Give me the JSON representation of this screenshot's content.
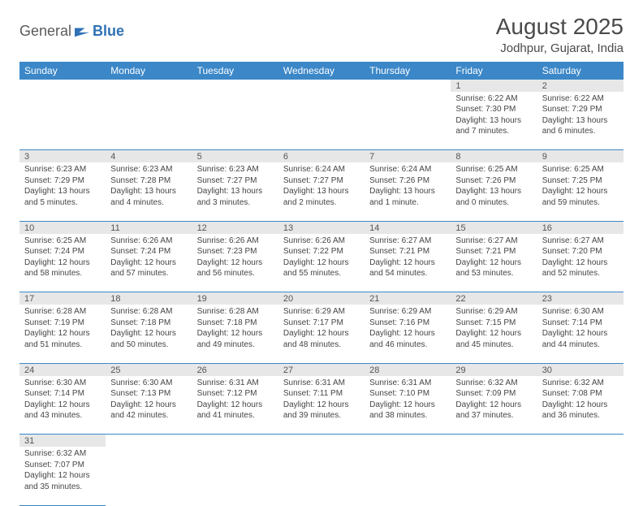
{
  "branding": {
    "text1": "General",
    "text2": "Blue",
    "icon_color": "#2f72b6"
  },
  "header": {
    "month_title": "August 2025",
    "location": "Jodhpur, Gujarat, India"
  },
  "styling": {
    "header_bg": "#3b87c8",
    "header_fg": "#ffffff",
    "daynum_bg": "#e7e7e7",
    "cell_border": "#3b87c8",
    "text_color": "#454545",
    "page_bg": "#ffffff",
    "title_color": "#4a4a4a",
    "font_family": "Arial, Helvetica, sans-serif",
    "daynum_fontsize": 11,
    "detail_fontsize": 10,
    "header_fontsize": 12
  },
  "weekdays": [
    "Sunday",
    "Monday",
    "Tuesday",
    "Wednesday",
    "Thursday",
    "Friday",
    "Saturday"
  ],
  "weeks": [
    [
      null,
      null,
      null,
      null,
      null,
      {
        "n": "1",
        "sr": "Sunrise: 6:22 AM",
        "ss": "Sunset: 7:30 PM",
        "dl": "Daylight: 13 hours and 7 minutes."
      },
      {
        "n": "2",
        "sr": "Sunrise: 6:22 AM",
        "ss": "Sunset: 7:29 PM",
        "dl": "Daylight: 13 hours and 6 minutes."
      }
    ],
    [
      {
        "n": "3",
        "sr": "Sunrise: 6:23 AM",
        "ss": "Sunset: 7:29 PM",
        "dl": "Daylight: 13 hours and 5 minutes."
      },
      {
        "n": "4",
        "sr": "Sunrise: 6:23 AM",
        "ss": "Sunset: 7:28 PM",
        "dl": "Daylight: 13 hours and 4 minutes."
      },
      {
        "n": "5",
        "sr": "Sunrise: 6:23 AM",
        "ss": "Sunset: 7:27 PM",
        "dl": "Daylight: 13 hours and 3 minutes."
      },
      {
        "n": "6",
        "sr": "Sunrise: 6:24 AM",
        "ss": "Sunset: 7:27 PM",
        "dl": "Daylight: 13 hours and 2 minutes."
      },
      {
        "n": "7",
        "sr": "Sunrise: 6:24 AM",
        "ss": "Sunset: 7:26 PM",
        "dl": "Daylight: 13 hours and 1 minute."
      },
      {
        "n": "8",
        "sr": "Sunrise: 6:25 AM",
        "ss": "Sunset: 7:26 PM",
        "dl": "Daylight: 13 hours and 0 minutes."
      },
      {
        "n": "9",
        "sr": "Sunrise: 6:25 AM",
        "ss": "Sunset: 7:25 PM",
        "dl": "Daylight: 12 hours and 59 minutes."
      }
    ],
    [
      {
        "n": "10",
        "sr": "Sunrise: 6:25 AM",
        "ss": "Sunset: 7:24 PM",
        "dl": "Daylight: 12 hours and 58 minutes."
      },
      {
        "n": "11",
        "sr": "Sunrise: 6:26 AM",
        "ss": "Sunset: 7:24 PM",
        "dl": "Daylight: 12 hours and 57 minutes."
      },
      {
        "n": "12",
        "sr": "Sunrise: 6:26 AM",
        "ss": "Sunset: 7:23 PM",
        "dl": "Daylight: 12 hours and 56 minutes."
      },
      {
        "n": "13",
        "sr": "Sunrise: 6:26 AM",
        "ss": "Sunset: 7:22 PM",
        "dl": "Daylight: 12 hours and 55 minutes."
      },
      {
        "n": "14",
        "sr": "Sunrise: 6:27 AM",
        "ss": "Sunset: 7:21 PM",
        "dl": "Daylight: 12 hours and 54 minutes."
      },
      {
        "n": "15",
        "sr": "Sunrise: 6:27 AM",
        "ss": "Sunset: 7:21 PM",
        "dl": "Daylight: 12 hours and 53 minutes."
      },
      {
        "n": "16",
        "sr": "Sunrise: 6:27 AM",
        "ss": "Sunset: 7:20 PM",
        "dl": "Daylight: 12 hours and 52 minutes."
      }
    ],
    [
      {
        "n": "17",
        "sr": "Sunrise: 6:28 AM",
        "ss": "Sunset: 7:19 PM",
        "dl": "Daylight: 12 hours and 51 minutes."
      },
      {
        "n": "18",
        "sr": "Sunrise: 6:28 AM",
        "ss": "Sunset: 7:18 PM",
        "dl": "Daylight: 12 hours and 50 minutes."
      },
      {
        "n": "19",
        "sr": "Sunrise: 6:28 AM",
        "ss": "Sunset: 7:18 PM",
        "dl": "Daylight: 12 hours and 49 minutes."
      },
      {
        "n": "20",
        "sr": "Sunrise: 6:29 AM",
        "ss": "Sunset: 7:17 PM",
        "dl": "Daylight: 12 hours and 48 minutes."
      },
      {
        "n": "21",
        "sr": "Sunrise: 6:29 AM",
        "ss": "Sunset: 7:16 PM",
        "dl": "Daylight: 12 hours and 46 minutes."
      },
      {
        "n": "22",
        "sr": "Sunrise: 6:29 AM",
        "ss": "Sunset: 7:15 PM",
        "dl": "Daylight: 12 hours and 45 minutes."
      },
      {
        "n": "23",
        "sr": "Sunrise: 6:30 AM",
        "ss": "Sunset: 7:14 PM",
        "dl": "Daylight: 12 hours and 44 minutes."
      }
    ],
    [
      {
        "n": "24",
        "sr": "Sunrise: 6:30 AM",
        "ss": "Sunset: 7:14 PM",
        "dl": "Daylight: 12 hours and 43 minutes."
      },
      {
        "n": "25",
        "sr": "Sunrise: 6:30 AM",
        "ss": "Sunset: 7:13 PM",
        "dl": "Daylight: 12 hours and 42 minutes."
      },
      {
        "n": "26",
        "sr": "Sunrise: 6:31 AM",
        "ss": "Sunset: 7:12 PM",
        "dl": "Daylight: 12 hours and 41 minutes."
      },
      {
        "n": "27",
        "sr": "Sunrise: 6:31 AM",
        "ss": "Sunset: 7:11 PM",
        "dl": "Daylight: 12 hours and 39 minutes."
      },
      {
        "n": "28",
        "sr": "Sunrise: 6:31 AM",
        "ss": "Sunset: 7:10 PM",
        "dl": "Daylight: 12 hours and 38 minutes."
      },
      {
        "n": "29",
        "sr": "Sunrise: 6:32 AM",
        "ss": "Sunset: 7:09 PM",
        "dl": "Daylight: 12 hours and 37 minutes."
      },
      {
        "n": "30",
        "sr": "Sunrise: 6:32 AM",
        "ss": "Sunset: 7:08 PM",
        "dl": "Daylight: 12 hours and 36 minutes."
      }
    ],
    [
      {
        "n": "31",
        "sr": "Sunrise: 6:32 AM",
        "ss": "Sunset: 7:07 PM",
        "dl": "Daylight: 12 hours and 35 minutes."
      },
      null,
      null,
      null,
      null,
      null,
      null
    ]
  ]
}
